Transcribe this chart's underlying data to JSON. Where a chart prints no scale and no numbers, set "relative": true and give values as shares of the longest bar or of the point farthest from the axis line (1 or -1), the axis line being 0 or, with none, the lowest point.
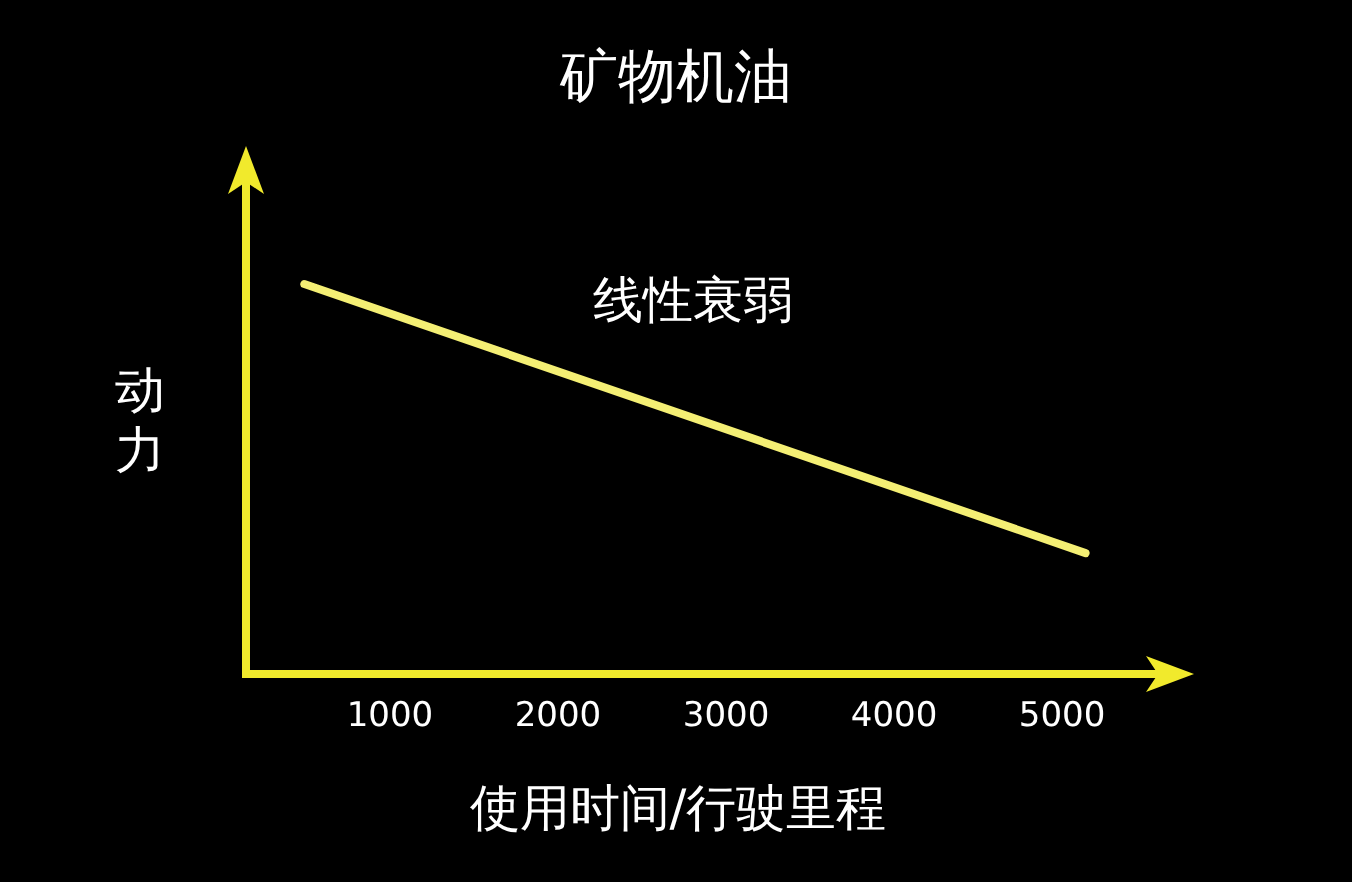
{
  "chart_data": {
    "type": "line",
    "title": "矿物机油",
    "xlabel": "使用时间/行驶里程",
    "ylabel": "动力",
    "annotations": [
      "线性衰弱"
    ],
    "relative": true,
    "tick_labels": "x",
    "x": [
      490,
      5140
    ],
    "series": [
      {
        "color": "#f4ef74",
        "values": [
          1,
          0.31
        ]
      }
    ],
    "xlim": [
      143,
      5690
    ],
    "xticks": [
      1000,
      2000,
      3000,
      4000,
      5000
    ]
  }
}
